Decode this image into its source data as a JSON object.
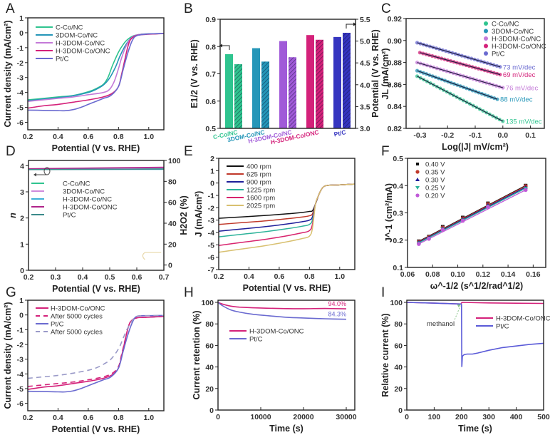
{
  "chart_data": [
    {
      "panel": "A",
      "type": "line",
      "xlabel": "Potential (V vs. RHE)",
      "ylabel": "Current density (mA/cm²)",
      "xlim": [
        0.2,
        1.1
      ],
      "ylim": [
        -6.5,
        1
      ],
      "xticks": [
        "0.2",
        "0.4",
        "0.6",
        "0.8",
        "1.0"
      ],
      "yticks": [
        "1",
        "0",
        "-1",
        "-2",
        "-3",
        "-4",
        "-5",
        "-6"
      ],
      "legend_position": "top-left",
      "series": [
        {
          "name": "C-Co/NC",
          "color": "#2fc48f",
          "x": [
            0.2,
            0.3,
            0.4,
            0.5,
            0.6,
            0.65,
            0.7,
            0.73,
            0.76,
            0.8,
            0.83,
            0.86,
            0.9,
            0.95,
            1.0,
            1.1
          ],
          "y": [
            -4.5,
            -4.4,
            -4.3,
            -4.2,
            -3.95,
            -3.75,
            -3.45,
            -3.0,
            -2.2,
            -1.3,
            -0.8,
            -0.45,
            -0.2,
            -0.1,
            -0.08,
            -0.05
          ]
        },
        {
          "name": "3DOM-Co/NC",
          "color": "#2596b8",
          "x": [
            0.2,
            0.3,
            0.4,
            0.5,
            0.6,
            0.65,
            0.7,
            0.74,
            0.78,
            0.81,
            0.84,
            0.87,
            0.9,
            0.95,
            1.0,
            1.1
          ],
          "y": [
            -4.55,
            -4.45,
            -4.35,
            -4.22,
            -4.0,
            -3.8,
            -3.5,
            -3.05,
            -2.3,
            -1.55,
            -0.95,
            -0.5,
            -0.22,
            -0.1,
            -0.08,
            -0.05
          ]
        },
        {
          "name": "H-3DOM-Co/NC",
          "color": "#c47ad8",
          "x": [
            0.2,
            0.3,
            0.4,
            0.5,
            0.6,
            0.7,
            0.74,
            0.77,
            0.8,
            0.82,
            0.85,
            0.88,
            0.92,
            1.0,
            1.1
          ],
          "y": [
            -4.6,
            -4.5,
            -4.4,
            -4.3,
            -4.15,
            -4.0,
            -3.8,
            -3.3,
            -2.4,
            -1.7,
            -0.9,
            -0.4,
            -0.15,
            -0.08,
            -0.05
          ]
        },
        {
          "name": "H-3DOM-Co/ONC",
          "color": "#d4217a",
          "x": [
            0.2,
            0.3,
            0.4,
            0.5,
            0.6,
            0.7,
            0.76,
            0.8,
            0.82,
            0.84,
            0.86,
            0.88,
            0.92,
            1.0,
            1.1
          ],
          "y": [
            -5.05,
            -4.9,
            -4.8,
            -4.65,
            -4.5,
            -4.3,
            -4.05,
            -3.6,
            -2.8,
            -1.9,
            -1.0,
            -0.45,
            -0.18,
            -0.1,
            -0.05
          ]
        },
        {
          "name": "Pt/C",
          "color": "#6a6ad0",
          "x": [
            0.2,
            0.3,
            0.4,
            0.45,
            0.5,
            0.55,
            0.6,
            0.65,
            0.7,
            0.75,
            0.8,
            0.83,
            0.86,
            0.89,
            0.92,
            1.0,
            1.1
          ],
          "y": [
            -5.18,
            -5.2,
            -5.22,
            -5.22,
            -5.15,
            -5.0,
            -4.8,
            -4.6,
            -4.4,
            -4.2,
            -3.6,
            -2.5,
            -1.4,
            -0.55,
            -0.2,
            -0.08,
            -0.05
          ]
        }
      ]
    },
    {
      "panel": "B",
      "type": "bar",
      "categories": [
        "C-Co/NC",
        "3DOM-Co/NC",
        "H-3DOM-Co/NC",
        "H-3DOM-Co/ONC",
        "Pt/C"
      ],
      "category_colors": [
        "#2fc48f",
        "#2596b8",
        "#a05ad8",
        "#d4217a",
        "#3535c0"
      ],
      "ylabel_left": "E1/2 (V vs. RHE)",
      "ylabel_right": "JL (mA/cm²)",
      "ylim_left": [
        0.5,
        0.9
      ],
      "ylim_right": [
        3.0,
        5.5
      ],
      "yticks_left": [
        "0.5",
        "0.6",
        "0.7",
        "0.8",
        "0.9"
      ],
      "yticks_right": [
        "3.0",
        "3.5",
        "4.0",
        "4.5",
        "5.0",
        "5.5"
      ],
      "series": [
        {
          "name": "E1/2",
          "axis": "left",
          "pattern": "solid",
          "values": [
            0.772,
            0.794,
            0.82,
            0.842,
            0.835
          ]
        },
        {
          "name": "JL",
          "axis": "right",
          "pattern": "hatched",
          "values": [
            4.47,
            4.53,
            4.63,
            5.03,
            5.19
          ]
        }
      ]
    },
    {
      "panel": "C",
      "type": "scatter",
      "xlabel": "Log(|J| mV/cm²)",
      "ylabel": "Potential (V vs. RHE)",
      "xlim": [
        -0.35,
        0.15
      ],
      "ylim": [
        0.82,
        0.92
      ],
      "xticks": [
        "-0.3",
        "-0.2",
        "-0.1",
        "0.0",
        "0.1"
      ],
      "yticks": [
        "0.82",
        "0.84",
        "0.86",
        "0.88",
        "0.90",
        "0.92"
      ],
      "legend_position": "top-right",
      "series": [
        {
          "name": "C-Co/NC",
          "color": "#2fc48f",
          "x0": -0.31,
          "x1": 0.0,
          "y0": 0.8675,
          "y1": 0.8265,
          "annotation": "135 mV/dec"
        },
        {
          "name": "3DOM-Co/NC",
          "color": "#2596b8",
          "x0": -0.31,
          "x1": -0.02,
          "y0": 0.8725,
          "y1": 0.8465,
          "annotation": "88 mV/dec"
        },
        {
          "name": "H-3DOM-Co/NC",
          "color": "#c47ad8",
          "x0": -0.31,
          "x1": 0.0,
          "y0": 0.88,
          "y1": 0.857,
          "annotation": "76 mV/dec"
        },
        {
          "name": "H-3DOM-Co/ONC",
          "color": "#d4217a",
          "x0": -0.3,
          "x1": -0.01,
          "y0": 0.889,
          "y1": 0.869,
          "annotation": "69 mV/dec"
        },
        {
          "name": "Pt/C",
          "color": "#6a6ad0",
          "x0": -0.31,
          "x1": -0.01,
          "y0": 0.898,
          "y1": 0.876,
          "annotation": "73 mV/dec"
        }
      ]
    },
    {
      "panel": "D",
      "type": "line",
      "xlabel": "Potential (V vs. RHE)",
      "ylabel_left": "n",
      "ylabel_right": "H2O2 (%)",
      "xlim": [
        0.2,
        0.7
      ],
      "ylim_left": [
        0,
        4.2
      ],
      "ylim_right": [
        -5,
        100
      ],
      "xticks": [
        "0.2",
        "0.3",
        "0.4",
        "0.5",
        "0.6",
        "0.7"
      ],
      "yticks_left": [
        "0",
        "1",
        "2",
        "3",
        "4"
      ],
      "yticks_right": [
        "0",
        "20",
        "40",
        "60",
        "80",
        "100"
      ],
      "legend_position": "top-left",
      "series": [
        {
          "name": "C-Co/NC",
          "color": "#2fc48f",
          "n": [
            3.87,
            3.88
          ],
          "h2o2": [
            6,
            6
          ]
        },
        {
          "name": "3DOM-Co/NC",
          "color": "#d08adc",
          "n": [
            3.87,
            3.92
          ],
          "h2o2": [
            6,
            6
          ]
        },
        {
          "name": "H-3DOM-Co/NC",
          "color": "#3fb0d8",
          "n": [
            3.86,
            3.86
          ],
          "h2o2": [
            6,
            6
          ]
        },
        {
          "name": "H-3DOM-Co/ONC",
          "color": "#b0248a",
          "n": [
            3.88,
            3.94
          ],
          "h2o2": [
            6,
            6
          ]
        },
        {
          "name": "Pt/C",
          "color": "#3a8a8a",
          "n": [
            3.85,
            3.87
          ],
          "h2o2": [
            6,
            6
          ]
        }
      ]
    },
    {
      "panel": "E",
      "type": "line",
      "xlabel": "Potential (V vs. RHE)",
      "ylabel": "J (mA/cm²)",
      "xlim": [
        0.2,
        1.1
      ],
      "ylim": [
        -7,
        2
      ],
      "xticks": [
        "0.2",
        "0.4",
        "0.6",
        "0.8",
        "1.0"
      ],
      "yticks": [
        "2",
        "1",
        "0",
        "-1",
        "-2",
        "-3",
        "-4",
        "-5",
        "-6",
        "-7"
      ],
      "legend_position": "top-left",
      "series": [
        {
          "name": "400 rpm",
          "color": "#111111",
          "plateau": [
            -2.85,
            -2.3
          ]
        },
        {
          "name": "625 rpm",
          "color": "#c0392b",
          "plateau": [
            -3.35,
            -2.65
          ]
        },
        {
          "name": "900 rpm",
          "color": "#1e1e9a",
          "plateau": [
            -3.9,
            -3.0
          ]
        },
        {
          "name": "1225 rpm",
          "color": "#2db39a",
          "plateau": [
            -4.35,
            -3.35
          ]
        },
        {
          "name": "1600 rpm",
          "color": "#d8246e",
          "plateau": [
            -5.05,
            -3.85
          ]
        },
        {
          "name": "2025 rpm",
          "color": "#d8c070",
          "plateau": [
            -5.6,
            -4.3
          ]
        }
      ]
    },
    {
      "panel": "F",
      "type": "scatter",
      "xlabel": "ω^-1/2 (s^1/2/rad^1/2)",
      "ylabel": "J^-1 (cm²/mA)",
      "xlim": [
        0.06,
        0.17
      ],
      "ylim": [
        0.1,
        0.5
      ],
      "xticks": [
        "0.06",
        "0.08",
        "0.10",
        "0.12",
        "0.14",
        "0.16"
      ],
      "yticks": [
        "0.1",
        "0.2",
        "0.3",
        "0.4",
        "0.5"
      ],
      "legend_position": "top-left",
      "x": [
        0.069,
        0.077,
        0.088,
        0.104,
        0.124,
        0.154
      ],
      "series": [
        {
          "name": "0.40 V",
          "color": "#111111",
          "marker": "square",
          "y": [
            0.196,
            0.213,
            0.249,
            0.283,
            0.335,
            0.4
          ]
        },
        {
          "name": "0.35 V",
          "color": "#c0392b",
          "marker": "circle",
          "y": [
            0.194,
            0.211,
            0.246,
            0.28,
            0.332,
            0.398
          ]
        },
        {
          "name": "0.30 V",
          "color": "#1e1e9a",
          "marker": "triangle-up",
          "y": [
            0.192,
            0.209,
            0.243,
            0.277,
            0.328,
            0.394
          ]
        },
        {
          "name": "0.25 V",
          "color": "#2db39a",
          "marker": "triangle-down",
          "y": [
            0.19,
            0.207,
            0.241,
            0.274,
            0.325,
            0.39
          ]
        },
        {
          "name": "0.20 V",
          "color": "#c05ad8",
          "marker": "circle",
          "y": [
            0.186,
            0.205,
            0.238,
            0.271,
            0.322,
            0.384
          ]
        }
      ]
    },
    {
      "panel": "G",
      "type": "line",
      "xlabel": "Potential  (V vs. RHE)",
      "ylabel": "Current density (mA/cm²)",
      "xlim": [
        0.2,
        1.1
      ],
      "ylim": [
        -6.5,
        1
      ],
      "xticks": [
        "0.2",
        "0.4",
        "0.6",
        "0.8",
        "1.0"
      ],
      "yticks": [
        "1",
        "0",
        "-1",
        "-2",
        "-3",
        "-4",
        "-5",
        "-6"
      ],
      "legend_position": "top-left",
      "series": [
        {
          "name": "H-3DOM-Co/ONC",
          "color": "#d4217a",
          "dashed": false,
          "x": [
            0.2,
            0.3,
            0.4,
            0.5,
            0.6,
            0.7,
            0.76,
            0.8,
            0.82,
            0.84,
            0.86,
            0.88,
            0.92,
            1.0,
            1.1
          ],
          "y": [
            -5.05,
            -4.9,
            -4.8,
            -4.65,
            -4.5,
            -4.3,
            -4.05,
            -3.6,
            -2.8,
            -1.9,
            -1.0,
            -0.45,
            -0.2,
            -0.15,
            -0.1
          ]
        },
        {
          "name": "After 5000 cycles",
          "color": "#d4217a",
          "dashed": true,
          "x": [
            0.2,
            0.3,
            0.4,
            0.5,
            0.6,
            0.7,
            0.76,
            0.8,
            0.82,
            0.84,
            0.86,
            0.88,
            0.92,
            1.0,
            1.1
          ],
          "y": [
            -4.85,
            -4.75,
            -4.65,
            -4.55,
            -4.4,
            -4.2,
            -3.95,
            -3.5,
            -2.7,
            -1.85,
            -1.0,
            -0.45,
            -0.2,
            -0.15,
            -0.1
          ]
        },
        {
          "name": "Pt/C",
          "color": "#6a6ad0",
          "dashed": false,
          "x": [
            0.2,
            0.3,
            0.4,
            0.45,
            0.5,
            0.55,
            0.6,
            0.65,
            0.7,
            0.75,
            0.8,
            0.83,
            0.86,
            0.89,
            0.92,
            1.0,
            1.1
          ],
          "y": [
            -5.18,
            -5.2,
            -5.22,
            -5.22,
            -5.15,
            -5.0,
            -4.8,
            -4.6,
            -4.4,
            -4.2,
            -3.6,
            -2.5,
            -1.4,
            -0.55,
            -0.1,
            -0.05,
            -0.03
          ]
        },
        {
          "name": "After 5000 cycles",
          "color": "#9a9ac8",
          "dashed": true,
          "x": [
            0.2,
            0.3,
            0.4,
            0.5,
            0.6,
            0.65,
            0.7,
            0.75,
            0.8,
            0.83,
            0.86,
            0.89,
            0.92,
            1.0,
            1.1
          ],
          "y": [
            -4.3,
            -4.2,
            -4.1,
            -3.95,
            -3.75,
            -3.6,
            -3.35,
            -3.0,
            -2.3,
            -1.6,
            -0.9,
            -0.4,
            -0.1,
            -0.05,
            -0.03
          ]
        }
      ]
    },
    {
      "panel": "H",
      "type": "line",
      "xlabel": "Time (s)",
      "ylabel": "Current retention (%)",
      "xlim": [
        0,
        32000
      ],
      "ylim": [
        0,
        102
      ],
      "xticks": [
        "0",
        "10000",
        "20000",
        "30000"
      ],
      "yticks": [
        "0",
        "20",
        "40",
        "60",
        "80",
        "100"
      ],
      "legend_position": "top-left",
      "series": [
        {
          "name": "H-3DOM-Co/ONC",
          "color": "#d4217a",
          "x": [
            0,
            1000,
            3000,
            5000,
            8000,
            12000,
            16000,
            20000,
            25000,
            30000
          ],
          "y": [
            100,
            98.5,
            96.5,
            95.6,
            95,
            94.5,
            94.2,
            94.1,
            94.3,
            94.0
          ],
          "annotation": "94.0%"
        },
        {
          "name": "Pt/C",
          "color": "#6a6ad0",
          "x": [
            0,
            1000,
            3000,
            5000,
            8000,
            12000,
            16000,
            20000,
            25000,
            30000
          ],
          "y": [
            100,
            97,
            93,
            91,
            89,
            87.5,
            86.2,
            85.5,
            84.8,
            84.3
          ],
          "annotation": "84.3%"
        }
      ]
    },
    {
      "panel": "I",
      "type": "line",
      "xlabel": "Time (s)",
      "ylabel": "Relative current (%)",
      "xlim": [
        0,
        500
      ],
      "ylim": [
        0,
        102
      ],
      "xticks": [
        "0",
        "100",
        "200",
        "300",
        "400",
        "500"
      ],
      "yticks": [
        "0",
        "20",
        "40",
        "60",
        "80",
        "100"
      ],
      "legend_position": "top-right",
      "annotation": "methanol",
      "series": [
        {
          "name": "H-3DOM-Co/ONC",
          "color": "#d4217a",
          "x": [
            0,
            100,
            198,
            200,
            202,
            300,
            400,
            500
          ],
          "y": [
            100,
            99.3,
            98.5,
            99.5,
            100,
            99.5,
            99.2,
            99
          ]
        },
        {
          "name": "Pt/C",
          "color": "#5a5ad8",
          "x": [
            0,
            100,
            198,
            200,
            201,
            203,
            210,
            220,
            240,
            260,
            300,
            350,
            400,
            450,
            500
          ],
          "y": [
            100,
            99.3,
            98.5,
            98,
            40,
            50,
            51.5,
            52,
            52,
            53,
            55.5,
            58,
            59.5,
            61,
            62
          ]
        }
      ]
    }
  ],
  "panel_labels": [
    "A",
    "B",
    "C",
    "D",
    "E",
    "F",
    "G",
    "H",
    "I"
  ],
  "panel_d_marker_label": "O"
}
